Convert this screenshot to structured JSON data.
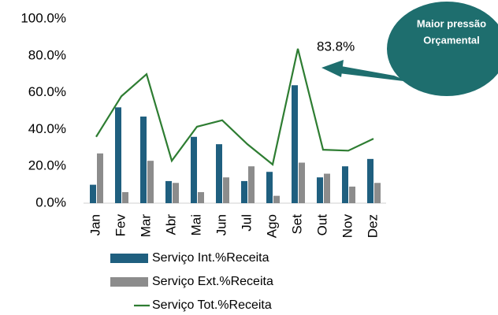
{
  "chart_data": {
    "type": "bar_line",
    "categories": [
      "Jan",
      "Fev",
      "Mar",
      "Abr",
      "Mai",
      "Jun",
      "Jul",
      "Ago",
      "Set",
      "Out",
      "Nov",
      "Dez"
    ],
    "series": [
      {
        "name": "Serviço Int.%Receita",
        "type": "bar",
        "color": "#1f5f7f",
        "values": [
          10,
          52,
          47,
          12,
          36,
          32,
          12,
          17,
          64,
          14,
          20,
          24
        ]
      },
      {
        "name": "Serviço Ext.%Receita",
        "type": "bar",
        "color": "#8c8c8c",
        "values": [
          27,
          6,
          23,
          11,
          6,
          14,
          20,
          4,
          22,
          16,
          9,
          11
        ]
      },
      {
        "name": "Serviço Tot.%Receita",
        "type": "line",
        "color": "#2e7d32",
        "values": [
          36,
          58,
          70,
          23,
          41.5,
          45,
          32,
          21,
          83.8,
          29,
          28.5,
          35
        ],
        "value_labels": [
          null,
          null,
          null,
          null,
          null,
          null,
          null,
          null,
          "83.8%",
          null,
          null,
          null
        ]
      }
    ],
    "ylim": [
      0,
      100
    ],
    "yticks": [
      {
        "value": 0,
        "label": "0.0%"
      },
      {
        "value": 20,
        "label": "20.0%"
      },
      {
        "value": 40,
        "label": "40.0%"
      },
      {
        "value": 60,
        "label": "60.0%"
      },
      {
        "value": 80,
        "label": "80.0%"
      },
      {
        "value": 100,
        "label": "100.0%"
      }
    ],
    "legend": "bottom",
    "annotation": {
      "lines": [
        "Maior pressão",
        "Orçamental"
      ],
      "color": "#1e6e6e"
    }
  }
}
